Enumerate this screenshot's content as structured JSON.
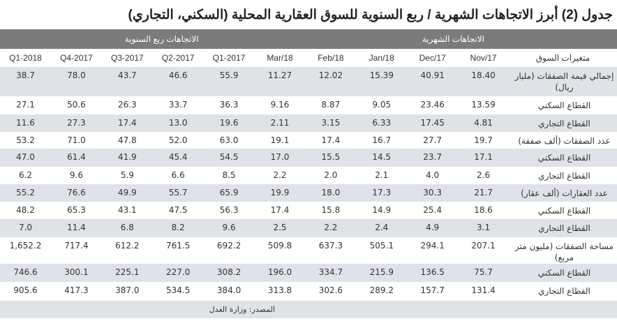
{
  "title": "جدول (2) أبرز الاتجاهات الشهرية / ربع السنوية للسوق العقارية المحلية (السكني، التجاري)",
  "groups": {
    "monthly": "الاتجاهات الشهرية",
    "quarterly": "الاتجاهات ربع السنوية"
  },
  "columns": [
    "متغيرات السوق",
    "Nov/17",
    "Dec/17",
    "Jan/18",
    "Feb/18",
    "Mar/18",
    "2017-Q1",
    "2017-Q2",
    "2017-Q3",
    "2017-Q4",
    "2018-Q1"
  ],
  "rows": [
    {
      "label": "إجمالي قيمة الصفقات (مليار ريال)",
      "values": [
        "18.40",
        "40.91",
        "15.39",
        "12.02",
        "11.27",
        "55.9",
        "46.6",
        "43.7",
        "78.0",
        "38.7"
      ]
    },
    {
      "label": "القطاع السكني",
      "values": [
        "13.59",
        "23.46",
        "9.05",
        "8.87",
        "9.16",
        "36.3",
        "33.7",
        "26.3",
        "50.6",
        "27.1"
      ]
    },
    {
      "label": "القطاع التجاري",
      "values": [
        "4.81",
        "17.45",
        "6.33",
        "3.15",
        "2.11",
        "19.6",
        "13.0",
        "17.4",
        "27.3",
        "11.6"
      ]
    },
    {
      "label": "عدد الصفقات (ألف صفقة)",
      "values": [
        "19.7",
        "27.7",
        "16.7",
        "17.4",
        "19.1",
        "63.0",
        "52.0",
        "47.8",
        "71.0",
        "53.2"
      ]
    },
    {
      "label": "القطاع السكني",
      "values": [
        "17.1",
        "23.7",
        "14.5",
        "15.5",
        "17.0",
        "54.5",
        "45.4",
        "41.9",
        "61.4",
        "47.0"
      ]
    },
    {
      "label": "القطاع التجاري",
      "values": [
        "2.6",
        "4.0",
        "2.1",
        "2.0",
        "2.2",
        "8.5",
        "6.6",
        "5.9",
        "9.6",
        "6.2"
      ]
    },
    {
      "label": "عدد العقارات (ألف عقار)",
      "values": [
        "21.7",
        "30.3",
        "17.3",
        "18.0",
        "19.9",
        "65.9",
        "55.7",
        "49.9",
        "76.6",
        "55.2"
      ]
    },
    {
      "label": "القطاع السكني",
      "values": [
        "18.6",
        "25.4",
        "14.9",
        "15.8",
        "17.4",
        "56.3",
        "47.5",
        "43.1",
        "65.3",
        "48.2"
      ]
    },
    {
      "label": "القطاع التجاري",
      "values": [
        "3.1",
        "4.9",
        "2.4",
        "2.2",
        "2.5",
        "9.6",
        "8.2",
        "6.8",
        "11.4",
        "7.0"
      ]
    },
    {
      "label": "مساحة الصفقات (مليون متر مربع)",
      "values": [
        "207.1",
        "294.1",
        "505.1",
        "637.3",
        "509.8",
        "692.2",
        "761.5",
        "612.2",
        "717.4",
        "1,652.2"
      ]
    },
    {
      "label": "القطاع السكني",
      "values": [
        "75.7",
        "136.5",
        "215.9",
        "334.7",
        "196.0",
        "308.2",
        "227.0",
        "225.1",
        "300.1",
        "746.6"
      ]
    },
    {
      "label": "القطاع التجاري",
      "values": [
        "131.4",
        "157.7",
        "289.2",
        "302.6",
        "313.8",
        "384.0",
        "534.5",
        "387.0",
        "417.3",
        "905.6"
      ]
    }
  ],
  "source": "المصدر: وزارة العدل",
  "colors": {
    "group_header_bg": "#7b7b7b",
    "stripe": "#dfe3e7"
  }
}
